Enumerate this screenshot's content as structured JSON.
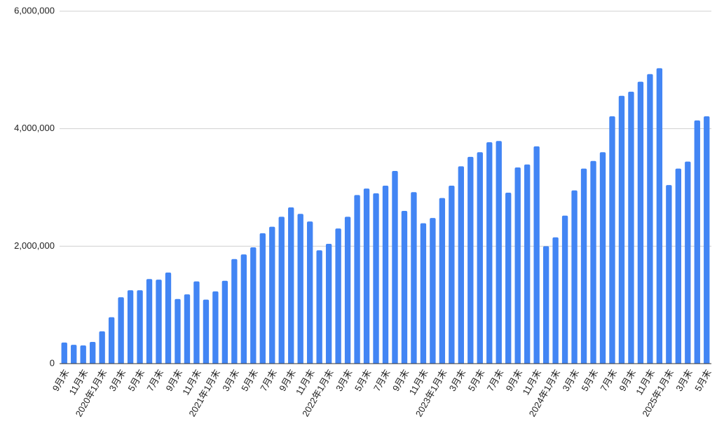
{
  "chart_data": {
    "type": "bar",
    "categories": [
      "9月末",
      null,
      "11月末",
      null,
      "2020年1月末",
      null,
      "3月末",
      null,
      "5月末",
      null,
      "7月末",
      null,
      "9月末",
      null,
      "11月末",
      null,
      "2021年1月末",
      null,
      "3月末",
      null,
      "5月末",
      null,
      "7月末",
      null,
      "9月末",
      null,
      "11月末",
      null,
      "2022年1月末",
      null,
      "3月末",
      null,
      "5月末",
      null,
      "7月末",
      null,
      "9月末",
      null,
      "11月末",
      null,
      "2023年1月末",
      null,
      "3月末",
      null,
      "5月末",
      null,
      "7月末",
      null,
      "9月末",
      null,
      "11月末",
      null,
      "2024年1月末",
      null,
      "3月末",
      null,
      "5月末",
      null,
      "7月末",
      null,
      "9月末",
      null,
      "11月末",
      null,
      "2025年1月末",
      null,
      "3月末",
      null,
      "5月末"
    ],
    "values": [
      360000,
      320000,
      310000,
      370000,
      550000,
      790000,
      1130000,
      1250000,
      1250000,
      1440000,
      1430000,
      1550000,
      1100000,
      1180000,
      1400000,
      1090000,
      1230000,
      1410000,
      1780000,
      1860000,
      1980000,
      2220000,
      2330000,
      2500000,
      2660000,
      2550000,
      2420000,
      1930000,
      2040000,
      2300000,
      2500000,
      2870000,
      2980000,
      2900000,
      3030000,
      3280000,
      2600000,
      2920000,
      2390000,
      2480000,
      2820000,
      3030000,
      3360000,
      3520000,
      3600000,
      3770000,
      3790000,
      2910000,
      3340000,
      3390000,
      3700000,
      2000000,
      2150000,
      2520000,
      2950000,
      3320000,
      3450000,
      3600000,
      4210000,
      4560000,
      4630000,
      4800000,
      4930000,
      5030000,
      3040000,
      3320000,
      3440000,
      4140000,
      4210000
    ],
    "color": "#4285f4",
    "ylim": [
      0,
      6000000
    ],
    "yticks": [
      {
        "value": 0,
        "label": "0"
      },
      {
        "value": 2000000,
        "label": "2,000,000"
      },
      {
        "value": 4000000,
        "label": "4,000,000"
      },
      {
        "value": 6000000,
        "label": "6,000,000"
      }
    ],
    "grid": true
  }
}
